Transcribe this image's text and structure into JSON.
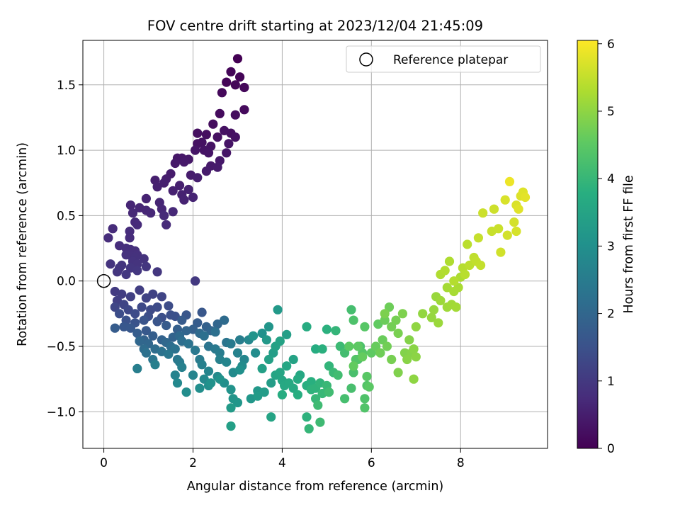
{
  "chart_data": {
    "type": "scatter",
    "title": "FOV centre drift starting at 2023/12/04 21:45:09",
    "xlabel": "Angular distance from reference (arcmin)",
    "ylabel": "Rotation from reference (arcmin)",
    "xlim": [
      -0.47,
      9.95
    ],
    "ylim": [
      -1.28,
      1.84
    ],
    "x_ticks": [
      0,
      2,
      4,
      6,
      8
    ],
    "x_tick_labels": [
      "0",
      "2",
      "4",
      "6",
      "8"
    ],
    "y_ticks": [
      -1.0,
      -0.5,
      0.0,
      0.5,
      1.0,
      1.5
    ],
    "y_tick_labels": [
      "−1.0",
      "−0.5",
      "0.0",
      "0.5",
      "1.0",
      "1.5"
    ],
    "grid": true,
    "legend": {
      "placement": "top-right",
      "entries": [
        "Reference platepar"
      ]
    },
    "reference_point": {
      "x": 0.0,
      "y": 0.0,
      "marker": "open-circle"
    },
    "colorbar": {
      "label": "Hours from first FF file",
      "colormap": "viridis",
      "range": [
        0,
        6.05
      ],
      "ticks": [
        0,
        1,
        2,
        3,
        4,
        5,
        6
      ],
      "tick_labels": [
        "0",
        "1",
        "2",
        "3",
        "4",
        "5",
        "6"
      ]
    },
    "points": [
      [
        3.0,
        1.7,
        0.0
      ],
      [
        2.75,
        1.52,
        0.05
      ],
      [
        3.05,
        1.56,
        0.05
      ],
      [
        2.85,
        1.6,
        0.08
      ],
      [
        2.95,
        1.5,
        0.1
      ],
      [
        3.15,
        1.48,
        0.12
      ],
      [
        2.65,
        1.44,
        0.14
      ],
      [
        3.15,
        1.31,
        0.15
      ],
      [
        2.6,
        1.28,
        0.18
      ],
      [
        2.45,
        1.2,
        0.2
      ],
      [
        2.95,
        1.27,
        0.2
      ],
      [
        2.3,
        1.12,
        0.22
      ],
      [
        2.1,
        1.13,
        0.24
      ],
      [
        2.55,
        1.1,
        0.25
      ],
      [
        2.85,
        1.13,
        0.26
      ],
      [
        2.2,
        1.06,
        0.27
      ],
      [
        2.7,
        1.15,
        0.27
      ],
      [
        2.1,
        1.05,
        0.28
      ],
      [
        2.4,
        1.03,
        0.3
      ],
      [
        2.95,
        1.1,
        0.3
      ],
      [
        2.25,
        1.0,
        0.31
      ],
      [
        2.8,
        1.05,
        0.32
      ],
      [
        2.35,
        0.98,
        0.33
      ],
      [
        2.05,
        1.0,
        0.34
      ],
      [
        2.75,
        0.98,
        0.35
      ],
      [
        1.65,
        0.94,
        0.37
      ],
      [
        1.75,
        0.94,
        0.38
      ],
      [
        1.9,
        0.93,
        0.39
      ],
      [
        2.6,
        0.92,
        0.4
      ],
      [
        1.6,
        0.9,
        0.41
      ],
      [
        1.8,
        0.91,
        0.42
      ],
      [
        2.4,
        0.88,
        0.43
      ],
      [
        2.55,
        0.87,
        0.44
      ],
      [
        2.3,
        0.84,
        0.45
      ],
      [
        1.5,
        0.82,
        0.46
      ],
      [
        1.95,
        0.81,
        0.47
      ],
      [
        1.4,
        0.78,
        0.49
      ],
      [
        2.1,
        0.79,
        0.5
      ],
      [
        1.15,
        0.77,
        0.51
      ],
      [
        1.35,
        0.75,
        0.52
      ],
      [
        1.7,
        0.73,
        0.53
      ],
      [
        1.2,
        0.72,
        0.54
      ],
      [
        1.55,
        0.69,
        0.55
      ],
      [
        1.9,
        0.7,
        0.56
      ],
      [
        1.75,
        0.66,
        0.57
      ],
      [
        0.95,
        0.63,
        0.58
      ],
      [
        1.8,
        0.62,
        0.59
      ],
      [
        2.0,
        0.64,
        0.6
      ],
      [
        0.6,
        0.58,
        0.62
      ],
      [
        1.25,
        0.6,
        0.63
      ],
      [
        0.8,
        0.56,
        0.64
      ],
      [
        1.3,
        0.55,
        0.65
      ],
      [
        0.95,
        0.54,
        0.66
      ],
      [
        1.05,
        0.52,
        0.67
      ],
      [
        0.65,
        0.52,
        0.68
      ],
      [
        1.55,
        0.53,
        0.69
      ],
      [
        1.35,
        0.5,
        0.7
      ],
      [
        0.7,
        0.45,
        0.71
      ],
      [
        1.4,
        0.43,
        0.72
      ],
      [
        0.75,
        0.43,
        0.73
      ],
      [
        0.2,
        0.4,
        0.74
      ],
      [
        0.58,
        0.38,
        0.75
      ],
      [
        0.58,
        0.33,
        0.76
      ],
      [
        0.1,
        0.33,
        0.77
      ],
      [
        0.35,
        0.27,
        0.78
      ],
      [
        0.5,
        0.25,
        0.79
      ],
      [
        0.6,
        0.24,
        0.8
      ],
      [
        0.7,
        0.23,
        0.81
      ],
      [
        0.55,
        0.21,
        0.82
      ],
      [
        0.62,
        0.19,
        0.83
      ],
      [
        0.75,
        0.2,
        0.84
      ],
      [
        0.5,
        0.2,
        0.85
      ],
      [
        0.7,
        0.18,
        0.86
      ],
      [
        0.9,
        0.17,
        0.87
      ],
      [
        0.65,
        0.15,
        0.88
      ],
      [
        0.75,
        0.13,
        0.89
      ],
      [
        0.15,
        0.13,
        0.9
      ],
      [
        0.4,
        0.12,
        0.91
      ],
      [
        0.35,
        0.1,
        0.92
      ],
      [
        0.6,
        0.1,
        0.93
      ],
      [
        0.95,
        0.11,
        0.94
      ],
      [
        0.3,
        0.07,
        0.95
      ],
      [
        1.2,
        0.07,
        0.96
      ],
      [
        0.75,
        0.08,
        0.97
      ],
      [
        0.5,
        0.05,
        0.98
      ],
      [
        2.05,
        0.0,
        1.0
      ],
      [
        0.25,
        -0.08,
        1.05
      ],
      [
        0.4,
        -0.1,
        1.08
      ],
      [
        0.8,
        -0.07,
        1.1
      ],
      [
        0.3,
        -0.15,
        1.12
      ],
      [
        0.6,
        -0.12,
        1.15
      ],
      [
        1.1,
        -0.1,
        1.18
      ],
      [
        0.95,
        -0.13,
        1.2
      ],
      [
        1.3,
        -0.12,
        1.22
      ],
      [
        0.45,
        -0.18,
        1.25
      ],
      [
        0.25,
        -0.2,
        1.27
      ],
      [
        0.55,
        -0.22,
        1.3
      ],
      [
        0.85,
        -0.2,
        1.32
      ],
      [
        1.05,
        -0.22,
        1.34
      ],
      [
        1.2,
        -0.2,
        1.36
      ],
      [
        1.45,
        -0.19,
        1.38
      ],
      [
        0.7,
        -0.25,
        1.4
      ],
      [
        0.35,
        -0.25,
        1.42
      ],
      [
        1.0,
        -0.27,
        1.44
      ],
      [
        1.3,
        -0.28,
        1.46
      ],
      [
        1.5,
        -0.26,
        1.48
      ],
      [
        1.6,
        -0.27,
        1.5
      ],
      [
        0.5,
        -0.3,
        1.52
      ],
      [
        0.7,
        -0.32,
        1.54
      ],
      [
        0.9,
        -0.3,
        1.56
      ],
      [
        1.2,
        -0.31,
        1.58
      ],
      [
        1.85,
        -0.26,
        1.6
      ],
      [
        2.2,
        -0.24,
        1.62
      ],
      [
        0.45,
        -0.35,
        1.64
      ],
      [
        0.6,
        -0.36,
        1.66
      ],
      [
        0.95,
        -0.38,
        1.68
      ],
      [
        1.4,
        -0.34,
        1.7
      ],
      [
        1.75,
        -0.3,
        1.72
      ],
      [
        2.1,
        -0.32,
        1.74
      ],
      [
        0.25,
        -0.36,
        1.76
      ],
      [
        0.75,
        -0.4,
        1.78
      ],
      [
        1.1,
        -0.42,
        1.8
      ],
      [
        1.65,
        -0.37,
        1.82
      ],
      [
        2.0,
        -0.37,
        1.84
      ],
      [
        2.3,
        -0.35,
        1.86
      ],
      [
        0.9,
        -0.45,
        1.88
      ],
      [
        1.3,
        -0.45,
        1.9
      ],
      [
        1.55,
        -0.43,
        1.92
      ],
      [
        1.85,
        -0.38,
        1.94
      ],
      [
        2.4,
        -0.38,
        1.96
      ],
      [
        2.55,
        -0.33,
        1.98
      ],
      [
        0.8,
        -0.46,
        2.0
      ],
      [
        1.0,
        -0.48,
        2.02
      ],
      [
        1.4,
        -0.47,
        2.04
      ],
      [
        1.7,
        -0.42,
        2.06
      ],
      [
        2.15,
        -0.4,
        2.08
      ],
      [
        2.7,
        -0.3,
        2.1
      ],
      [
        0.9,
        -0.52,
        2.12
      ],
      [
        1.15,
        -0.52,
        2.14
      ],
      [
        1.5,
        -0.5,
        2.16
      ],
      [
        1.75,
        -0.46,
        2.18
      ],
      [
        2.25,
        -0.42,
        2.2
      ],
      [
        2.5,
        -0.39,
        2.22
      ],
      [
        0.95,
        -0.55,
        2.24
      ],
      [
        1.3,
        -0.54,
        2.26
      ],
      [
        1.6,
        -0.52,
        2.28
      ],
      [
        1.9,
        -0.48,
        2.3
      ],
      [
        2.35,
        -0.5,
        2.32
      ],
      [
        2.75,
        -0.47,
        2.34
      ],
      [
        1.1,
        -0.6,
        2.36
      ],
      [
        1.45,
        -0.56,
        2.38
      ],
      [
        1.65,
        -0.6,
        2.4
      ],
      [
        2.05,
        -0.53,
        2.42
      ],
      [
        2.5,
        -0.52,
        2.44
      ],
      [
        2.85,
        -0.48,
        2.46
      ],
      [
        1.7,
        -0.62,
        2.48
      ],
      [
        2.15,
        -0.6,
        2.5
      ],
      [
        2.6,
        -0.55,
        2.52
      ],
      [
        3.05,
        -0.45,
        2.54
      ],
      [
        0.75,
        -0.67,
        2.56
      ],
      [
        1.15,
        -0.64,
        2.58
      ],
      [
        1.75,
        -0.66,
        2.6
      ],
      [
        2.2,
        -0.64,
        2.62
      ],
      [
        2.6,
        -0.6,
        2.64
      ],
      [
        3.0,
        -0.55,
        2.66
      ],
      [
        1.6,
        -0.72,
        2.68
      ],
      [
        2.0,
        -0.72,
        2.7
      ],
      [
        2.35,
        -0.69,
        2.72
      ],
      [
        2.75,
        -0.62,
        2.74
      ],
      [
        3.15,
        -0.6,
        2.76
      ],
      [
        3.25,
        -0.45,
        2.78
      ],
      [
        1.65,
        -0.78,
        2.8
      ],
      [
        2.25,
        -0.75,
        2.82
      ],
      [
        2.55,
        -0.73,
        2.84
      ],
      [
        2.9,
        -0.7,
        2.86
      ],
      [
        3.1,
        -0.65,
        2.88
      ],
      [
        3.4,
        -0.55,
        2.9
      ],
      [
        1.85,
        -0.85,
        2.92
      ],
      [
        2.15,
        -0.82,
        2.94
      ],
      [
        2.35,
        -0.8,
        2.96
      ],
      [
        2.7,
        -0.78,
        2.98
      ],
      [
        3.05,
        -0.68,
        3.0
      ],
      [
        3.55,
        -0.4,
        3.02
      ],
      [
        2.4,
        -0.78,
        3.04
      ],
      [
        2.6,
        -0.75,
        3.06
      ],
      [
        2.85,
        -0.83,
        3.08
      ],
      [
        3.35,
        -0.42,
        3.1
      ],
      [
        3.7,
        -0.35,
        3.12
      ],
      [
        2.9,
        -0.9,
        3.14
      ],
      [
        3.0,
        -0.93,
        3.16
      ],
      [
        3.3,
        -0.9,
        3.18
      ],
      [
        3.45,
        -0.84,
        3.2
      ],
      [
        3.65,
        -0.45,
        3.22
      ],
      [
        3.9,
        -0.22,
        3.24
      ],
      [
        2.85,
        -0.97,
        3.26
      ],
      [
        3.45,
        -0.88,
        3.28
      ],
      [
        3.6,
        -0.85,
        3.3
      ],
      [
        3.75,
        -0.78,
        3.32
      ],
      [
        3.8,
        -0.55,
        3.34
      ],
      [
        4.1,
        -0.41,
        3.36
      ],
      [
        2.85,
        -1.11,
        3.38
      ],
      [
        3.55,
        -0.67,
        3.4
      ],
      [
        3.7,
        -0.6,
        3.42
      ],
      [
        3.85,
        -0.5,
        3.44
      ],
      [
        3.95,
        -0.46,
        3.46
      ],
      [
        4.25,
        -0.6,
        3.48
      ],
      [
        3.75,
        -1.04,
        3.5
      ],
      [
        3.85,
        -0.72,
        3.52
      ],
      [
        3.95,
        -0.7,
        3.54
      ],
      [
        4.1,
        -0.65,
        3.56
      ],
      [
        4.0,
        -0.76,
        3.58
      ],
      [
        4.4,
        -0.72,
        3.6
      ],
      [
        4.05,
        -0.8,
        3.62
      ],
      [
        4.15,
        -0.78,
        3.64
      ],
      [
        4.25,
        -0.82,
        3.66
      ],
      [
        4.35,
        -0.75,
        3.68
      ],
      [
        4.55,
        -0.35,
        3.7
      ],
      [
        4.75,
        -0.52,
        3.72
      ],
      [
        4.0,
        -0.87,
        3.74
      ],
      [
        4.35,
        -0.87,
        3.76
      ],
      [
        4.55,
        -0.8,
        3.78
      ],
      [
        4.65,
        -0.77,
        3.8
      ],
      [
        4.9,
        -0.52,
        3.82
      ],
      [
        5.0,
        -0.37,
        3.84
      ],
      [
        4.55,
        -1.04,
        3.86
      ],
      [
        4.65,
        -0.83,
        3.88
      ],
      [
        4.75,
        -0.82,
        3.9
      ],
      [
        4.85,
        -0.78,
        3.92
      ],
      [
        5.05,
        -0.65,
        3.94
      ],
      [
        5.2,
        -0.38,
        3.96
      ],
      [
        4.6,
        -1.13,
        3.98
      ],
      [
        4.75,
        -0.9,
        4.0
      ],
      [
        4.9,
        -0.86,
        4.02
      ],
      [
        5.0,
        -0.8,
        4.04
      ],
      [
        5.15,
        -0.7,
        4.06
      ],
      [
        5.3,
        -0.5,
        4.08
      ],
      [
        4.85,
        -1.08,
        4.1
      ],
      [
        4.8,
        -0.95,
        4.12
      ],
      [
        5.05,
        -0.85,
        4.14
      ],
      [
        5.25,
        -0.72,
        4.16
      ],
      [
        5.4,
        -0.55,
        4.18
      ],
      [
        5.55,
        -0.22,
        4.2
      ],
      [
        5.4,
        -0.9,
        4.22
      ],
      [
        5.55,
        -0.82,
        4.24
      ],
      [
        5.6,
        -0.7,
        4.26
      ],
      [
        5.7,
        -0.6,
        4.28
      ],
      [
        5.75,
        -0.5,
        4.3
      ],
      [
        5.6,
        -0.3,
        4.32
      ],
      [
        5.85,
        -0.9,
        4.34
      ],
      [
        5.85,
        -0.97,
        4.36
      ],
      [
        5.9,
        -0.8,
        4.38
      ],
      [
        5.65,
        -0.6,
        4.4
      ],
      [
        5.8,
        -0.55,
        4.42
      ],
      [
        5.85,
        -0.35,
        4.44
      ],
      [
        5.9,
        -0.73,
        4.46
      ],
      [
        5.95,
        -0.81,
        4.48
      ],
      [
        5.5,
        -0.5,
        4.5
      ],
      [
        5.7,
        -0.5,
        4.52
      ],
      [
        6.0,
        -0.55,
        4.54
      ],
      [
        6.15,
        -0.33,
        4.56
      ],
      [
        5.6,
        -0.65,
        4.58
      ],
      [
        5.8,
        -0.58,
        4.6
      ],
      [
        6.1,
        -0.5,
        4.62
      ],
      [
        6.25,
        -0.45,
        4.64
      ],
      [
        6.3,
        -0.3,
        4.66
      ],
      [
        6.4,
        -0.2,
        4.68
      ],
      [
        6.2,
        -0.55,
        4.7
      ],
      [
        6.35,
        -0.5,
        4.72
      ],
      [
        6.45,
        -0.35,
        4.74
      ],
      [
        6.55,
        -0.3,
        4.76
      ],
      [
        6.45,
        -0.6,
        4.78
      ],
      [
        6.6,
        -0.4,
        4.8
      ],
      [
        6.3,
        -0.25,
        4.82
      ],
      [
        6.7,
        -0.25,
        4.84
      ],
      [
        6.6,
        -0.7,
        4.86
      ],
      [
        6.75,
        -0.55,
        4.88
      ],
      [
        6.85,
        -0.45,
        4.9
      ],
      [
        6.9,
        -0.55,
        4.92
      ],
      [
        6.8,
        -0.6,
        4.94
      ],
      [
        6.95,
        -0.52,
        4.96
      ],
      [
        7.0,
        -0.58,
        4.98
      ],
      [
        6.95,
        -0.75,
        5.0
      ],
      [
        7.0,
        -0.35,
        5.02
      ],
      [
        7.15,
        -0.25,
        5.04
      ],
      [
        7.35,
        -0.28,
        5.06
      ],
      [
        7.4,
        -0.22,
        5.08
      ],
      [
        7.45,
        -0.12,
        5.1
      ],
      [
        7.5,
        -0.32,
        5.12
      ],
      [
        7.55,
        -0.15,
        5.14
      ],
      [
        7.7,
        -0.2,
        5.16
      ],
      [
        7.8,
        -0.18,
        5.18
      ],
      [
        7.9,
        -0.2,
        5.2
      ],
      [
        7.7,
        -0.05,
        5.22
      ],
      [
        7.85,
        -0.08,
        5.24
      ],
      [
        7.95,
        -0.05,
        5.26
      ],
      [
        8.0,
        0.03,
        5.28
      ],
      [
        7.75,
        0.15,
        5.3
      ],
      [
        7.55,
        0.05,
        5.32
      ],
      [
        7.65,
        0.08,
        5.34
      ],
      [
        7.85,
        0.0,
        5.36
      ],
      [
        8.05,
        0.1,
        5.38
      ],
      [
        8.1,
        0.05,
        5.4
      ],
      [
        8.15,
        0.28,
        5.42
      ],
      [
        8.2,
        0.12,
        5.44
      ],
      [
        8.3,
        0.18,
        5.46
      ],
      [
        8.35,
        0.15,
        5.48
      ],
      [
        8.45,
        0.12,
        5.5
      ],
      [
        8.4,
        0.33,
        5.52
      ],
      [
        8.7,
        0.38,
        5.54
      ],
      [
        8.85,
        0.4,
        5.56
      ],
      [
        8.5,
        0.52,
        5.58
      ],
      [
        8.75,
        0.55,
        5.6
      ],
      [
        8.9,
        0.22,
        5.62
      ],
      [
        9.05,
        0.35,
        5.64
      ],
      [
        9.2,
        0.45,
        5.66
      ],
      [
        9.25,
        0.38,
        5.68
      ],
      [
        9.0,
        0.62,
        5.7
      ],
      [
        9.25,
        0.58,
        5.72
      ],
      [
        9.35,
        0.65,
        5.74
      ],
      [
        9.4,
        0.68,
        5.76
      ],
      [
        9.3,
        0.55,
        5.78
      ],
      [
        9.45,
        0.64,
        5.8
      ],
      [
        9.1,
        0.76,
        5.9
      ]
    ]
  }
}
